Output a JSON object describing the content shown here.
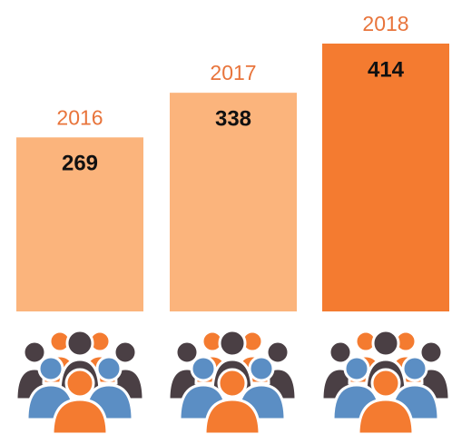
{
  "chart_data": {
    "type": "bar",
    "categories": [
      "2016",
      "2017",
      "2018"
    ],
    "values": [
      269,
      338,
      414
    ],
    "colors": [
      "#fbb47c",
      "#fbb47c",
      "#f47b30"
    ]
  }
}
